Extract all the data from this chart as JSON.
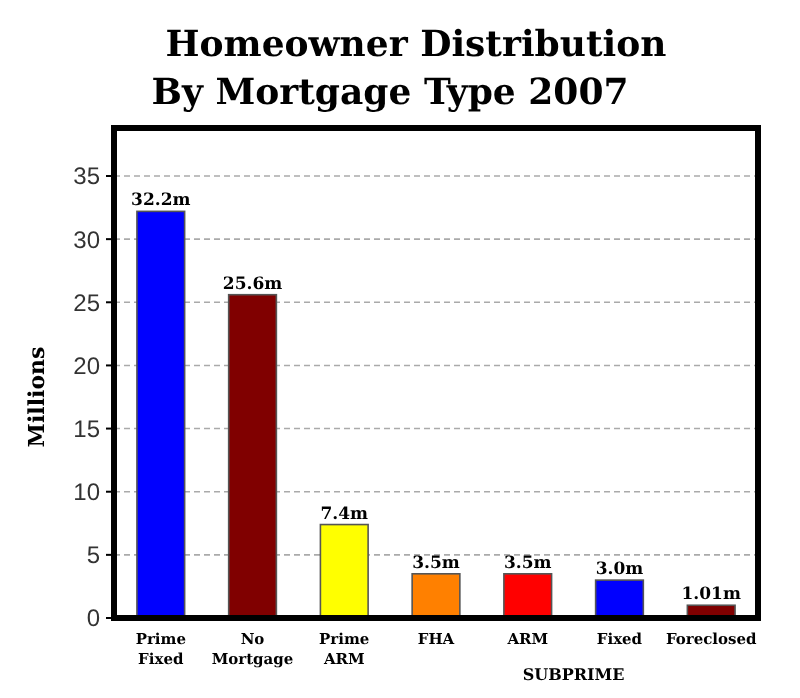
{
  "chart_data": {
    "type": "bar",
    "title": "Homeowner Distribution\nBy Mortgage Type 2007",
    "ylabel": "Millions",
    "categories": [
      "Prime Fixed",
      "No Mortgage",
      "Prime ARM",
      "FHA",
      "ARM",
      "Fixed",
      "Foreclosed"
    ],
    "values": [
      32.2,
      25.6,
      7.4,
      3.5,
      3.5,
      3.0,
      1.01
    ],
    "colors": [
      "#0000ff",
      "#800000",
      "#ffff00",
      "#ff8000",
      "#ff0000",
      "#0000ff",
      "#800000"
    ],
    "value_labels": [
      "32.2m",
      "25.6m",
      "7.4m",
      "3.5m",
      "3.5m",
      "3.0m",
      "1.01m"
    ],
    "annotations": [
      "SUBPRIME"
    ],
    "ylim": [
      0,
      35
    ],
    "yticks": [
      0,
      5,
      10,
      15,
      20,
      25,
      30,
      35
    ],
    "grid": "y"
  }
}
